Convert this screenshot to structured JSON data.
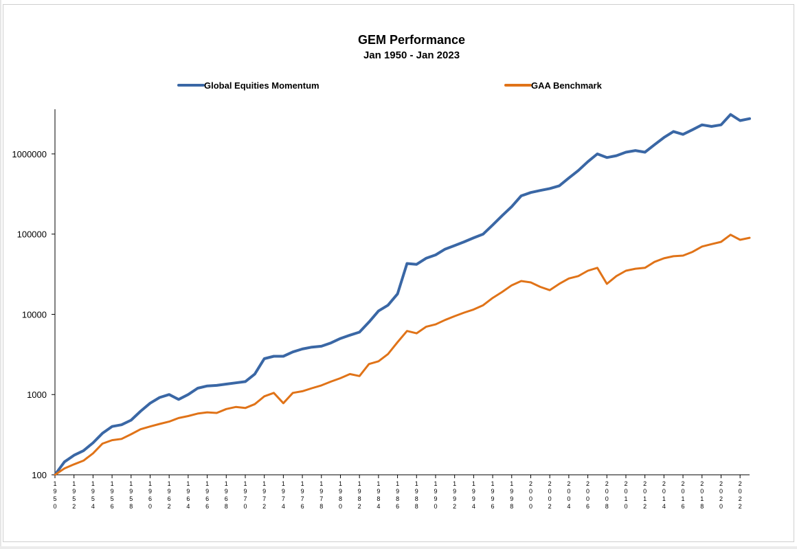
{
  "chart_data": {
    "type": "line",
    "title": "GEM Performance",
    "subtitle": "Jan 1950 - Jan 2023",
    "xlabel": "",
    "ylabel": "",
    "y_scale": "log",
    "ylim": [
      100,
      3600000
    ],
    "xlim": [
      1950,
      2023
    ],
    "y_ticks": [
      "100",
      "1000",
      "10000",
      "100000",
      "1000000"
    ],
    "x_ticks": [
      "1950",
      "1952",
      "1954",
      "1956",
      "1958",
      "1960",
      "1962",
      "1964",
      "1966",
      "1968",
      "1970",
      "1972",
      "1974",
      "1976",
      "1978",
      "1980",
      "1982",
      "1984",
      "1986",
      "1988",
      "1990",
      "1992",
      "1994",
      "1996",
      "1998",
      "2000",
      "2002",
      "2004",
      "2006",
      "2008",
      "2010",
      "2012",
      "2014",
      "2016",
      "2018",
      "2020",
      "2022"
    ],
    "legend_position": "top",
    "grid": false,
    "series": [
      {
        "name": "Global Equities Momentum",
        "color": "#3a67a5",
        "x": [
          1950,
          1951,
          1952,
          1953,
          1954,
          1955,
          1956,
          1957,
          1958,
          1959,
          1960,
          1961,
          1962,
          1963,
          1964,
          1965,
          1966,
          1967,
          1968,
          1969,
          1970,
          1971,
          1972,
          1973,
          1974,
          1975,
          1976,
          1977,
          1978,
          1979,
          1980,
          1981,
          1982,
          1983,
          1984,
          1985,
          1986,
          1987,
          1988,
          1989,
          1990,
          1991,
          1992,
          1993,
          1994,
          1995,
          1996,
          1997,
          1998,
          1999,
          2000,
          2001,
          2002,
          2003,
          2004,
          2005,
          2006,
          2007,
          2008,
          2009,
          2010,
          2011,
          2012,
          2013,
          2014,
          2015,
          2016,
          2017,
          2018,
          2019,
          2020,
          2021,
          2022,
          2023
        ],
        "values": [
          100,
          145,
          175,
          200,
          250,
          330,
          400,
          420,
          480,
          620,
          780,
          920,
          1000,
          870,
          1000,
          1200,
          1280,
          1300,
          1350,
          1400,
          1450,
          1800,
          2800,
          3000,
          3000,
          3400,
          3700,
          3900,
          4000,
          4400,
          5000,
          5500,
          6000,
          8000,
          11000,
          13000,
          18000,
          43000,
          42000,
          50000,
          55000,
          65000,
          72000,
          80000,
          90000,
          100000,
          130000,
          170000,
          220000,
          300000,
          330000,
          350000,
          370000,
          400000,
          500000,
          620000,
          800000,
          1000000,
          900000,
          950000,
          1050000,
          1100000,
          1050000,
          1300000,
          1600000,
          1900000,
          1750000,
          2000000,
          2300000,
          2200000,
          2300000,
          3100000,
          2600000,
          2750000
        ]
      },
      {
        "name": "GAA Benchmark",
        "color": "#e07318",
        "x": [
          1950,
          1951,
          1952,
          1953,
          1954,
          1955,
          1956,
          1957,
          1958,
          1959,
          1960,
          1961,
          1962,
          1963,
          1964,
          1965,
          1966,
          1967,
          1968,
          1969,
          1970,
          1971,
          1972,
          1973,
          1974,
          1975,
          1976,
          1977,
          1978,
          1979,
          1980,
          1981,
          1982,
          1983,
          1984,
          1985,
          1986,
          1987,
          1988,
          1989,
          1990,
          1991,
          1992,
          1993,
          1994,
          1995,
          1996,
          1997,
          1998,
          1999,
          2000,
          2001,
          2002,
          2003,
          2004,
          2005,
          2006,
          2007,
          2008,
          2009,
          2010,
          2011,
          2012,
          2013,
          2014,
          2015,
          2016,
          2017,
          2018,
          2019,
          2020,
          2021,
          2022,
          2023
        ],
        "values": [
          100,
          120,
          135,
          150,
          185,
          245,
          270,
          280,
          320,
          370,
          400,
          430,
          460,
          510,
          540,
          580,
          600,
          590,
          660,
          700,
          680,
          760,
          950,
          1050,
          780,
          1050,
          1100,
          1200,
          1300,
          1450,
          1600,
          1800,
          1700,
          2400,
          2600,
          3200,
          4500,
          6200,
          5800,
          7000,
          7500,
          8500,
          9500,
          10500,
          11500,
          13000,
          16000,
          19000,
          23000,
          26000,
          25000,
          22000,
          20000,
          24000,
          28000,
          30000,
          35000,
          38000,
          24000,
          30000,
          35000,
          37000,
          38000,
          45000,
          50000,
          53000,
          54000,
          60000,
          70000,
          75000,
          80000,
          98000,
          85000,
          90000
        ]
      }
    ]
  }
}
